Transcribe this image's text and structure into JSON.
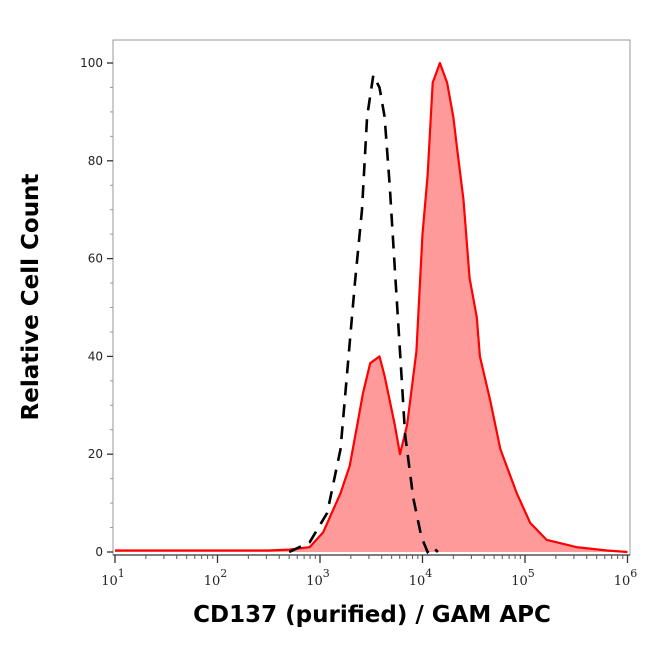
{
  "chart_data": {
    "type": "area",
    "title": "",
    "xlabel": "CD137 (purified) / GAM APC",
    "ylabel": "Relative Cell Count",
    "x_scale": "log",
    "xlim": [
      10,
      1000000
    ],
    "ylim": [
      0,
      104
    ],
    "x_ticks": [
      {
        "base": "10",
        "exp": "1",
        "value": 10
      },
      {
        "base": "10",
        "exp": "2",
        "value": 100
      },
      {
        "base": "10",
        "exp": "3",
        "value": 1000
      },
      {
        "base": "10",
        "exp": "4",
        "value": 10000
      },
      {
        "base": "10",
        "exp": "5",
        "value": 100000
      },
      {
        "base": "10",
        "exp": "6",
        "value": 1000000
      }
    ],
    "y_ticks": [
      "0",
      "20",
      "40",
      "60",
      "80",
      "100"
    ],
    "grid": false,
    "series": [
      {
        "style": "filled solid",
        "color": "#ff0000",
        "fill": "#ff9a9a",
        "x": [
          10,
          100,
          316,
          501,
          794,
          1072,
          1585,
          1950,
          2291,
          2630,
          3090,
          3802,
          4266,
          4786,
          5370,
          6026,
          7079,
          8710,
          10000,
          11220,
          12589,
          14791,
          17378,
          19953,
          21878,
          25119,
          28840,
          33884,
          36308,
          45709,
          57544,
          83176,
          112202,
          162181,
          316228,
          630957,
          1000000
        ],
        "y": [
          0.3,
          0.3,
          0.3,
          0.5,
          1,
          4,
          12,
          17.6,
          25.6,
          32.5,
          38.6,
          40,
          36,
          31,
          26,
          20,
          26,
          41,
          65,
          77,
          96,
          100,
          96,
          89,
          82,
          72,
          56,
          48,
          40,
          31,
          21,
          12,
          6,
          2.5,
          1,
          0.3,
          0
        ]
      },
      {
        "style": "dashed",
        "color": "#000000",
        "x": [
          501,
          794,
          1175,
          1585,
          1862,
          2188,
          2570,
          2884,
          3311,
          3802,
          4266,
          4786,
          5370,
          6026,
          6761,
          8128,
          9772,
          11220,
          12589,
          14125
        ],
        "y": [
          0,
          2,
          8,
          21,
          38,
          55,
          70,
          89,
          97.5,
          95,
          89,
          75,
          58,
          41,
          24,
          11,
          3,
          0,
          1,
          0
        ]
      }
    ]
  }
}
